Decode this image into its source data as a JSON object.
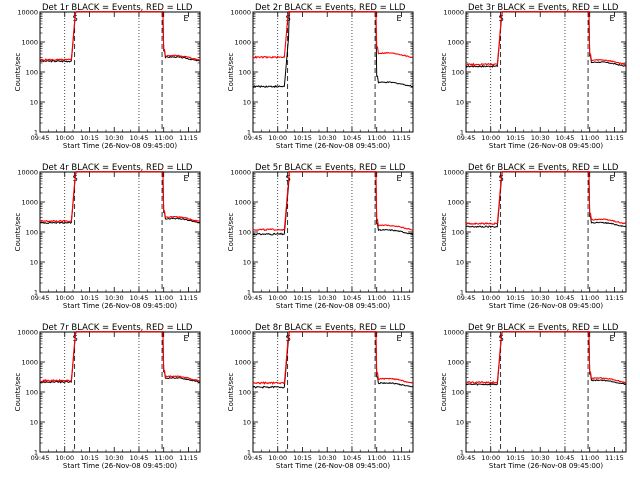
{
  "chart_data": [
    {
      "type": "line",
      "title": "Det 1r BLACK = Events, RED = LLD",
      "xlabel": "Start Time (26-Nov-08 09:45:00)",
      "ylabel": "Counts/sec",
      "x_ticks": [
        "09:45",
        "10:00",
        "10:15",
        "10:30",
        "10:45",
        "11:00",
        "11:15"
      ],
      "y_ticks": [
        "1",
        "10",
        "100",
        "1000",
        "10000"
      ],
      "ylim": [
        1,
        10000
      ],
      "xlim_minutes": [
        0,
        97
      ],
      "events": 230,
      "lld": 255,
      "markers": {
        "S": 21,
        "E": 74
      },
      "series": [
        {
          "name": "Events",
          "color": "#000000"
        },
        {
          "name": "LLD",
          "color": "#ff0000"
        }
      ]
    },
    {
      "type": "line",
      "title": "Det 2r BLACK = Events, RED = LLD",
      "xlabel": "Start Time (26-Nov-08 09:45:00)",
      "ylabel": "Counts/sec",
      "x_ticks": [
        "09:45",
        "10:00",
        "10:15",
        "10:30",
        "10:45",
        "11:00",
        "11:15"
      ],
      "y_ticks": [
        "1",
        "10",
        "100",
        "1000",
        "10000"
      ],
      "ylim": [
        1,
        10000
      ],
      "xlim_minutes": [
        0,
        97
      ],
      "events": 33,
      "lld": 310,
      "markers": {
        "S": 21,
        "E": 74
      },
      "series": [
        {
          "name": "Events",
          "color": "#000000"
        },
        {
          "name": "LLD",
          "color": "#ff0000"
        }
      ]
    },
    {
      "type": "line",
      "title": "Det 3r BLACK = Events, RED = LLD",
      "xlabel": "Start Time (26-Nov-08 09:45:00)",
      "ylabel": "Counts/sec",
      "x_ticks": [
        "09:45",
        "10:00",
        "10:15",
        "10:30",
        "10:45",
        "11:00",
        "11:15"
      ],
      "y_ticks": [
        "1",
        "10",
        "100",
        "1000",
        "10000"
      ],
      "ylim": [
        1,
        10000
      ],
      "xlim_minutes": [
        0,
        97
      ],
      "events": 155,
      "lld": 180,
      "markers": {
        "S": 21,
        "E": 74
      },
      "series": [
        {
          "name": "Events",
          "color": "#000000"
        },
        {
          "name": "LLD",
          "color": "#ff0000"
        }
      ]
    },
    {
      "type": "line",
      "title": "Det 4r BLACK = Events, RED = LLD",
      "xlabel": "Start Time (26-Nov-08 09:45:00)",
      "ylabel": "Counts/sec",
      "x_ticks": [
        "09:45",
        "10:00",
        "10:15",
        "10:30",
        "10:45",
        "11:00",
        "11:15"
      ],
      "y_ticks": [
        "1",
        "10",
        "100",
        "1000",
        "10000"
      ],
      "ylim": [
        1,
        10000
      ],
      "xlim_minutes": [
        0,
        97
      ],
      "events": 205,
      "lld": 230,
      "markers": {
        "S": 21,
        "E": 74
      },
      "series": [
        {
          "name": "Events",
          "color": "#000000"
        },
        {
          "name": "LLD",
          "color": "#ff0000"
        }
      ]
    },
    {
      "type": "line",
      "title": "Det 5r BLACK = Events, RED = LLD",
      "xlabel": "Start Time (26-Nov-08 09:45:00)",
      "ylabel": "Counts/sec",
      "x_ticks": [
        "09:45",
        "10:00",
        "10:15",
        "10:30",
        "10:45",
        "11:00",
        "11:15"
      ],
      "y_ticks": [
        "1",
        "10",
        "100",
        "1000",
        "10000"
      ],
      "ylim": [
        1,
        10000
      ],
      "xlim_minutes": [
        0,
        97
      ],
      "events": 85,
      "lld": 120,
      "markers": {
        "S": 21,
        "E": 74
      },
      "series": [
        {
          "name": "Events",
          "color": "#000000"
        },
        {
          "name": "LLD",
          "color": "#ff0000"
        }
      ]
    },
    {
      "type": "line",
      "title": "Det 6r BLACK = Events, RED = LLD",
      "xlabel": "Start Time (26-Nov-08 09:45:00)",
      "ylabel": "Counts/sec",
      "x_ticks": [
        "09:45",
        "10:00",
        "10:15",
        "10:30",
        "10:45",
        "11:00",
        "11:15"
      ],
      "y_ticks": [
        "1",
        "10",
        "100",
        "1000",
        "10000"
      ],
      "ylim": [
        1,
        10000
      ],
      "xlim_minutes": [
        0,
        97
      ],
      "events": 150,
      "lld": 190,
      "markers": {
        "S": 21,
        "E": 74
      },
      "series": [
        {
          "name": "Events",
          "color": "#000000"
        },
        {
          "name": "LLD",
          "color": "#ff0000"
        }
      ]
    },
    {
      "type": "line",
      "title": "Det 7r BLACK = Events, RED = LLD",
      "xlabel": "Start Time (26-Nov-08 09:45:00)",
      "ylabel": "Counts/sec",
      "x_ticks": [
        "09:45",
        "10:00",
        "10:15",
        "10:30",
        "10:45",
        "11:00",
        "11:15"
      ],
      "y_ticks": [
        "1",
        "10",
        "100",
        "1000",
        "10000"
      ],
      "ylim": [
        1,
        10000
      ],
      "xlim_minutes": [
        0,
        97
      ],
      "events": 215,
      "lld": 240,
      "markers": {
        "S": 21,
        "E": 74
      },
      "series": [
        {
          "name": "Events",
          "color": "#000000"
        },
        {
          "name": "LLD",
          "color": "#ff0000"
        }
      ]
    },
    {
      "type": "line",
      "title": "Det 8r BLACK = Events, RED = LLD",
      "xlabel": "Start Time (26-Nov-08 09:45:00)",
      "ylabel": "Counts/sec",
      "x_ticks": [
        "09:45",
        "10:00",
        "10:15",
        "10:30",
        "10:45",
        "11:00",
        "11:15"
      ],
      "y_ticks": [
        "1",
        "10",
        "100",
        "1000",
        "10000"
      ],
      "ylim": [
        1,
        10000
      ],
      "xlim_minutes": [
        0,
        97
      ],
      "events": 145,
      "lld": 200,
      "markers": {
        "S": 21,
        "E": 74
      },
      "series": [
        {
          "name": "Events",
          "color": "#000000"
        },
        {
          "name": "LLD",
          "color": "#ff0000"
        }
      ]
    },
    {
      "type": "line",
      "title": "Det 9r BLACK = Events, RED = LLD",
      "xlabel": "Start Time (26-Nov-08 09:45:00)",
      "ylabel": "Counts/sec",
      "x_ticks": [
        "09:45",
        "10:00",
        "10:15",
        "10:30",
        "10:45",
        "11:00",
        "11:15"
      ],
      "y_ticks": [
        "1",
        "10",
        "100",
        "1000",
        "10000"
      ],
      "ylim": [
        1,
        10000
      ],
      "xlim_minutes": [
        0,
        97
      ],
      "events": 180,
      "lld": 210,
      "markers": {
        "S": 21,
        "E": 74
      },
      "series": [
        {
          "name": "Events",
          "color": "#000000"
        },
        {
          "name": "LLD",
          "color": "#ff0000"
        }
      ]
    }
  ]
}
